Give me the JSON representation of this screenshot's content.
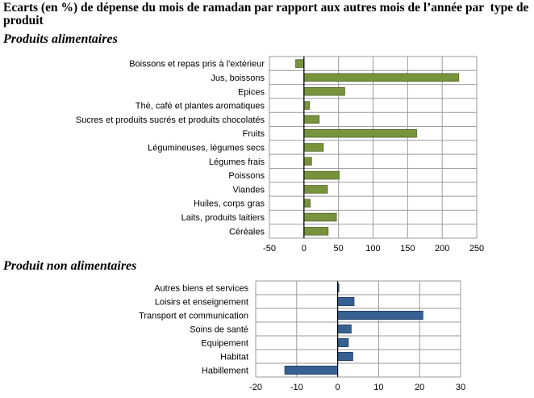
{
  "title": "Ecarts (en %) de dépense du mois de ramadan par rapport aux autres mois de l’année par  type de produit",
  "colors": {
    "food_bar": "#77933c",
    "food_bar_stroke": "#4f6228",
    "nonfood_bar": "#376092",
    "nonfood_bar_stroke": "#1f3a60",
    "grid": "#9a9a9a",
    "axis": "#000000"
  },
  "chart_data": [
    {
      "type": "bar",
      "orientation": "horizontal",
      "subtitle": "Produits alimentaires",
      "categories": [
        "Boissons et repas pris à l'extérieur",
        "Jus, boissons",
        "Epices",
        "Thé, café et plantes aromatiques",
        "Sucres et produits sucrés et produits chocolatés",
        "Fruits",
        "Légumineuses, légumes secs",
        "Légumes frais",
        "Poissons",
        "Viandes",
        "Huiles, corps gras",
        "Laits, produits laitiers",
        "Céréales"
      ],
      "values": [
        -12,
        224,
        59,
        8,
        22,
        163,
        28,
        11,
        51,
        34,
        9,
        47,
        35
      ],
      "xlim": [
        -50,
        250
      ],
      "xticks": [
        "-50",
        "0",
        "50",
        "100",
        "150",
        "200",
        "250"
      ],
      "grid": true,
      "legend": "none"
    },
    {
      "type": "bar",
      "orientation": "horizontal",
      "subtitle": "Produit non alimentaires",
      "categories": [
        "Autres biens et services",
        "Loisirs et enseignement",
        "Transport et communication",
        "Soins de santé",
        "Equipement",
        "Habitat",
        "Habillement"
      ],
      "values": [
        0.2,
        4,
        20.8,
        3.3,
        2.6,
        3.7,
        -12.9
      ],
      "xlim": [
        -20,
        30
      ],
      "xticks": [
        "-20",
        "-10",
        "0",
        "10",
        "20",
        "30"
      ],
      "grid": true,
      "legend": "none"
    }
  ]
}
